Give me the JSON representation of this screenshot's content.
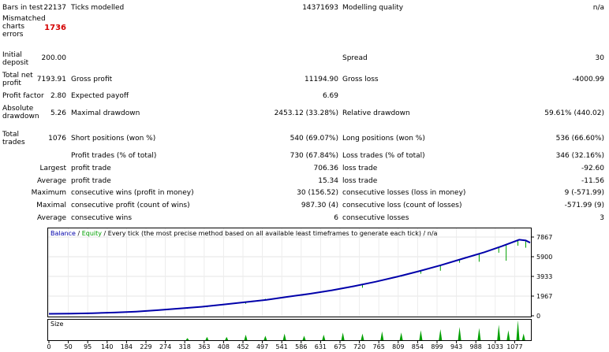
{
  "report": {
    "bars_in_test_label": "Bars in test",
    "bars_in_test": "22137",
    "ticks_modelled_label": "Ticks modelled",
    "ticks_modelled": "14371693",
    "modelling_quality_label": "Modelling quality",
    "modelling_quality": "n/a",
    "mismatched_label": "Mismatched charts errors",
    "mismatched": "1736",
    "initial_deposit_label": "Initial deposit",
    "initial_deposit": "200.00",
    "spread_label": "Spread",
    "spread": "30",
    "total_net_profit_label": "Total net profit",
    "total_net_profit": "7193.91",
    "gross_profit_label": "Gross profit",
    "gross_profit": "11194.90",
    "gross_loss_label": "Gross loss",
    "gross_loss": "-4000.99",
    "profit_factor_label": "Profit factor",
    "profit_factor": "2.80",
    "expected_payoff_label": "Expected payoff",
    "expected_payoff": "6.69",
    "absolute_drawdown_label": "Absolute drawdown",
    "absolute_drawdown": "5.26",
    "maximal_drawdown_label": "Maximal drawdown",
    "maximal_drawdown": "2453.12 (33.28%)",
    "relative_drawdown_label": "Relative drawdown",
    "relative_drawdown": "59.61% (440.02)",
    "total_trades_label": "Total trades",
    "total_trades": "1076",
    "short_positions_label": "Short positions (won %)",
    "short_positions": "540 (69.07%)",
    "long_positions_label": "Long positions (won %)",
    "long_positions": "536 (66.60%)",
    "profit_trades_label": "Profit trades (% of total)",
    "profit_trades": "730 (67.84%)",
    "loss_trades_label": "Loss trades (% of total)",
    "loss_trades": "346 (32.16%)",
    "largest_label": "Largest",
    "largest_profit_label": "profit trade",
    "largest_profit": "706.36",
    "largest_loss_label": "loss trade",
    "largest_loss": "-92.60",
    "average_label": "Average",
    "average_profit_label": "profit trade",
    "average_profit": "15.34",
    "average_loss_label": "loss trade",
    "average_loss": "-11.56",
    "maximum_label": "Maximum",
    "max_cons_wins_label": "consecutive wins (profit in money)",
    "max_cons_wins": "30 (156.52)",
    "max_cons_losses_label": "consecutive losses (loss in money)",
    "max_cons_losses": "9 (-571.99)",
    "maximal_label": "Maximal",
    "maximal_cons_profit_label": "consecutive profit (count of wins)",
    "maximal_cons_profit": "987.30 (4)",
    "maximal_cons_loss_label": "consecutive loss (count of losses)",
    "maximal_cons_loss": "-571.99 (9)",
    "average2_label": "Average",
    "avg_cons_wins_label": "consecutive wins",
    "avg_cons_wins": "6",
    "avg_cons_losses_label": "consecutive losses",
    "avg_cons_losses": "3"
  },
  "chart_data": {
    "type": "line",
    "legend": {
      "balance": "Balance",
      "sep1": " / ",
      "equity": "Equity",
      "rest": " / Every tick (the most precise method based on all available least timeframes to generate each tick) / n/a"
    },
    "colors": {
      "balance": "#0000aa",
      "equity": "#00a000",
      "size": "#00a000"
    },
    "y_ticks": [
      "7867",
      "5900",
      "3933",
      "1967",
      "0"
    ],
    "ylim": [
      0,
      7867
    ],
    "xlim": [
      0,
      1105
    ],
    "x_ticks": [
      "0",
      "50",
      "95",
      "140",
      "184",
      "229",
      "274",
      "318",
      "363",
      "408",
      "452",
      "497",
      "541",
      "586",
      "631",
      "675",
      "720",
      "765",
      "809",
      "854",
      "899",
      "943",
      "988",
      "1033",
      "1077"
    ],
    "size_label": "Size",
    "balance": [
      [
        0,
        200
      ],
      [
        50,
        215
      ],
      [
        100,
        260
      ],
      [
        150,
        320
      ],
      [
        200,
        420
      ],
      [
        250,
        560
      ],
      [
        300,
        720
      ],
      [
        350,
        900
      ],
      [
        400,
        1120
      ],
      [
        450,
        1350
      ],
      [
        500,
        1600
      ],
      [
        550,
        1900
      ],
      [
        600,
        2200
      ],
      [
        650,
        2550
      ],
      [
        700,
        2950
      ],
      [
        750,
        3400
      ],
      [
        800,
        3900
      ],
      [
        850,
        4450
      ],
      [
        900,
        5050
      ],
      [
        950,
        5700
      ],
      [
        1000,
        6350
      ],
      [
        1040,
        6950
      ],
      [
        1080,
        7600
      ],
      [
        1095,
        7520
      ],
      [
        1105,
        7300
      ]
    ],
    "equity_dips": [
      [
        318,
        700
      ],
      [
        363,
        850
      ],
      [
        452,
        1200
      ],
      [
        497,
        1700
      ],
      [
        541,
        1900
      ],
      [
        586,
        2200
      ],
      [
        631,
        2350
      ],
      [
        675,
        2700
      ],
      [
        720,
        2800
      ],
      [
        765,
        3500
      ],
      [
        809,
        3900
      ],
      [
        854,
        4200
      ],
      [
        899,
        4500
      ],
      [
        943,
        5300
      ],
      [
        988,
        5400
      ],
      [
        1033,
        6300
      ],
      [
        1050,
        5500
      ],
      [
        1077,
        7000
      ],
      [
        1095,
        6800
      ]
    ],
    "size_bars": [
      [
        318,
        2
      ],
      [
        363,
        3
      ],
      [
        408,
        3
      ],
      [
        452,
        5
      ],
      [
        497,
        4
      ],
      [
        541,
        6
      ],
      [
        586,
        4
      ],
      [
        631,
        5
      ],
      [
        675,
        7
      ],
      [
        720,
        6
      ],
      [
        765,
        8
      ],
      [
        809,
        7
      ],
      [
        854,
        9
      ],
      [
        899,
        10
      ],
      [
        943,
        12
      ],
      [
        988,
        11
      ],
      [
        1033,
        14
      ],
      [
        1055,
        9
      ],
      [
        1077,
        18
      ],
      [
        1090,
        6
      ]
    ]
  }
}
